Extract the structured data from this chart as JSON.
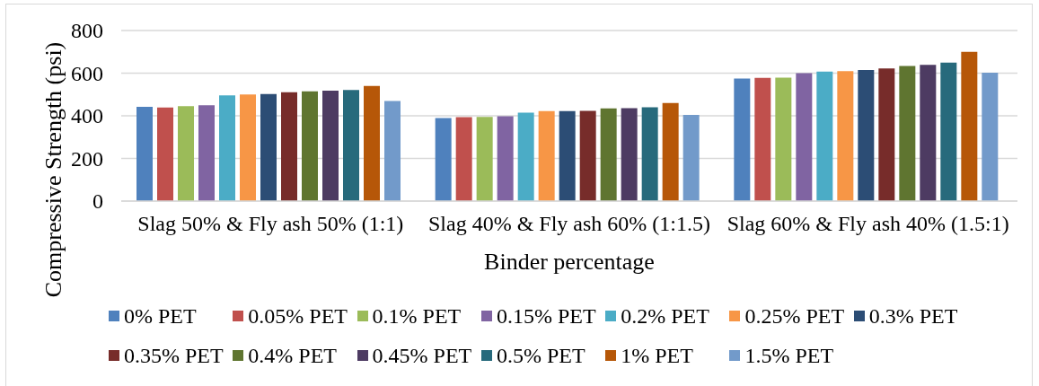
{
  "chart_data": {
    "type": "bar",
    "xlabel": "Binder percentage",
    "ylabel": "Compressive Strength (psi)",
    "categories": [
      "Slag 50% & Fly ash 50% (1:1)",
      "Slag 40% & Fly ash 60% (1:1.5)",
      "Slag 60% & Fly ash 40% (1.5:1)"
    ],
    "series": [
      {
        "name": "0% PET",
        "color": "#4f81bd",
        "values": [
          442,
          389,
          575
        ]
      },
      {
        "name": "0.05% PET",
        "color": "#c0504d",
        "values": [
          439,
          394,
          578
        ]
      },
      {
        "name": "0.1% PET",
        "color": "#9bbb59",
        "values": [
          445,
          395,
          579
        ]
      },
      {
        "name": "0.15% PET",
        "color": "#8064a2",
        "values": [
          449,
          398,
          600
        ]
      },
      {
        "name": "0.2% PET",
        "color": "#4bacc6",
        "values": [
          496,
          415,
          607
        ]
      },
      {
        "name": "0.25% PET",
        "color": "#f79646",
        "values": [
          500,
          422,
          609
        ]
      },
      {
        "name": "0.3% PET",
        "color": "#2c4d75",
        "values": [
          502,
          422,
          615
        ]
      },
      {
        "name": "0.35% PET",
        "color": "#772c2a",
        "values": [
          511,
          423,
          622
        ]
      },
      {
        "name": "0.4% PET",
        "color": "#5f7530",
        "values": [
          515,
          435,
          634
        ]
      },
      {
        "name": "0.45% PET",
        "color": "#4d3b62",
        "values": [
          518,
          436,
          639
        ]
      },
      {
        "name": "0.5% PET",
        "color": "#276a7c",
        "values": [
          521,
          440,
          650
        ]
      },
      {
        "name": "1% PET",
        "color": "#b65708",
        "values": [
          540,
          460,
          700
        ]
      },
      {
        "name": "1.5% PET",
        "color": "#729aca",
        "values": [
          470,
          404,
          602
        ]
      }
    ],
    "ylim": [
      0,
      800
    ],
    "yticks": [
      0,
      200,
      400,
      600,
      800
    ],
    "grid": "y",
    "legend": "bottom"
  }
}
